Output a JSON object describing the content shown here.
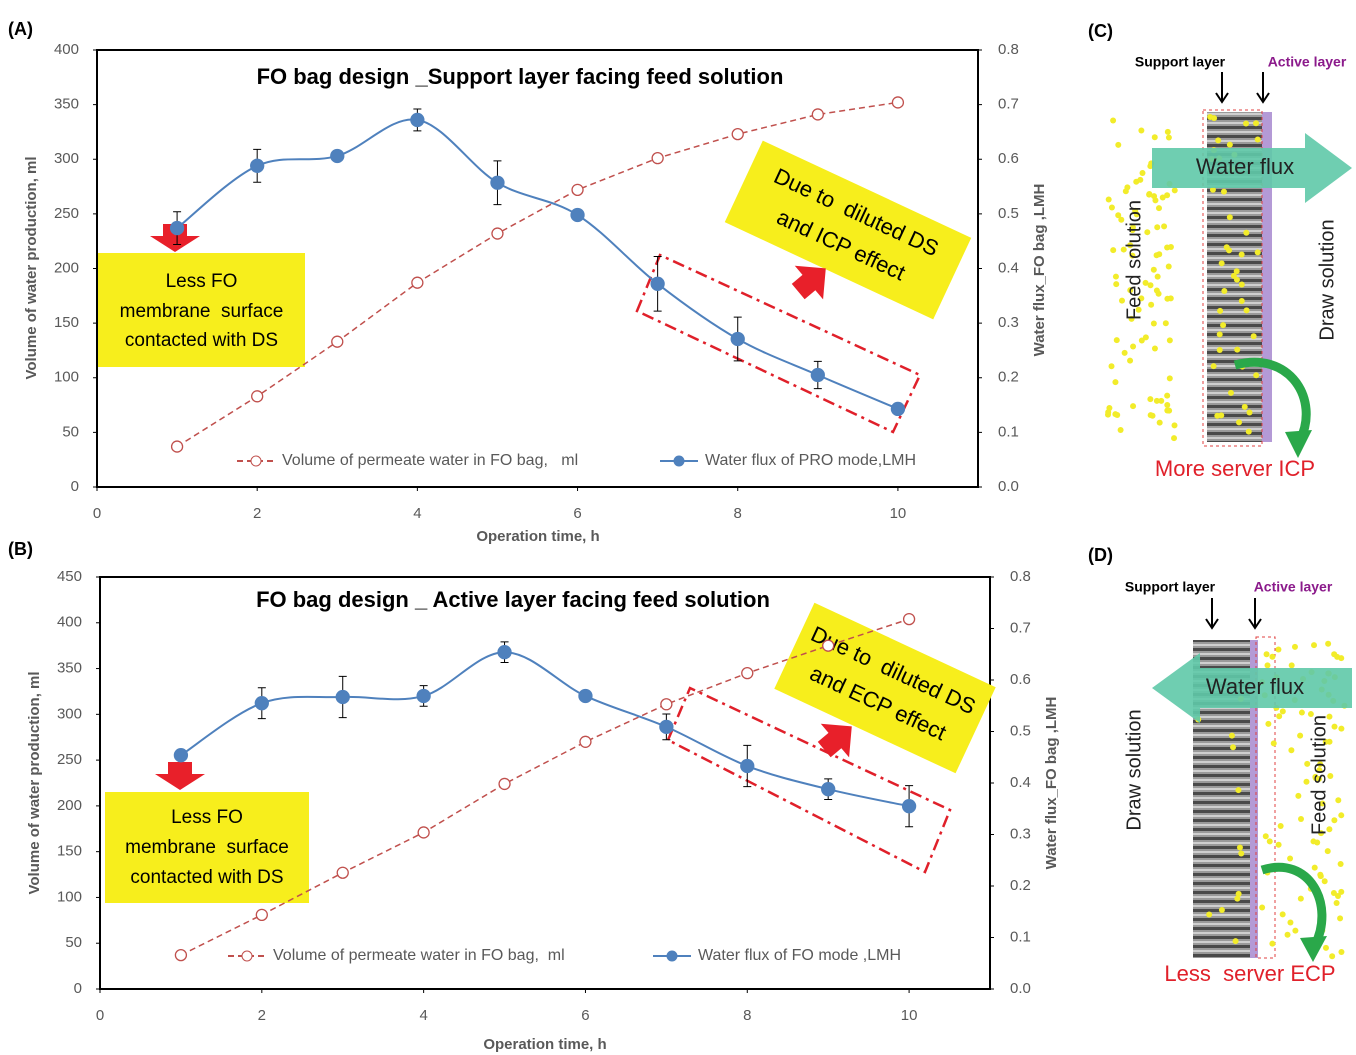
{
  "chart_data": [
    {
      "type": "line",
      "panel_label": "(A)",
      "title": "FO bag design _Support layer facing feed solution",
      "x_label": "Operation time, h",
      "y_label": "Volume of water production, ml",
      "y2_label": "Water flux_FO bag ,LMH",
      "x": [
        1,
        2,
        3,
        4,
        5,
        6,
        7,
        8,
        9,
        10
      ],
      "xlim": [
        0,
        11
      ],
      "xticks": [
        0,
        2,
        4,
        6,
        8,
        10
      ],
      "ylim": [
        0,
        400
      ],
      "yticks": [
        0,
        50,
        100,
        150,
        200,
        250,
        300,
        350,
        400
      ],
      "y2lim": [
        0,
        0.8
      ],
      "y2ticks": [
        {
          "value": 0,
          "label": "0.0"
        },
        0.1,
        0.2,
        0.3,
        0.4,
        0.5,
        0.6,
        0.7,
        0.8
      ],
      "grid": false,
      "series": [
        {
          "name": "Volume of permeate water in FO bag,   ml",
          "color": "#c0504d",
          "line_style": "dashed",
          "marker": "open-circle",
          "axis": "y",
          "values": [
            37,
            83,
            133,
            187,
            232,
            272,
            301,
            323,
            341,
            352
          ]
        },
        {
          "name": "Water flux of PRO mode,LMH",
          "color": "#4f81bd",
          "line_style": "solid",
          "marker": "filled-circle",
          "axis": "y2",
          "values": [
            0.474,
            0.588,
            0.606,
            0.672,
            0.557,
            0.498,
            0.372,
            0.271,
            0.205,
            0.143
          ],
          "errors": [
            0.03,
            0.03,
            null,
            0.02,
            0.04,
            null,
            0.05,
            0.04,
            0.025,
            null
          ]
        }
      ],
      "annotations": [
        {
          "lines": [
            "Less FO",
            "membrane  surface",
            "contacted with DS"
          ]
        },
        {
          "lines": [
            "Due to  diluted DS",
            "and ICP effect"
          ]
        }
      ]
    },
    {
      "type": "line",
      "panel_label": "(B)",
      "title": "FO bag design _ Active layer facing feed solution",
      "x_label": "Operation time, h",
      "y_label": "Volume of water production, ml",
      "y2_label": "Water flux_FO bag ,LMH",
      "x": [
        1,
        2,
        3,
        4,
        5,
        6,
        7,
        8,
        9,
        10
      ],
      "xlim": [
        0,
        11
      ],
      "xticks": [
        0,
        2,
        4,
        6,
        8,
        10
      ],
      "ylim": [
        0,
        450
      ],
      "yticks": [
        0,
        50,
        100,
        150,
        200,
        250,
        300,
        350,
        400,
        450
      ],
      "y2lim": [
        0,
        0.8
      ],
      "y2ticks": [
        {
          "value": 0,
          "label": "0.0"
        },
        0.1,
        0.2,
        0.3,
        0.4,
        0.5,
        0.6,
        0.7,
        0.8
      ],
      "grid": false,
      "series": [
        {
          "name": "Volume of permeate water in FO bag,  ml",
          "color": "#c0504d",
          "line_style": "dashed",
          "marker": "open-circle",
          "axis": "y",
          "values": [
            37,
            81,
            127,
            171,
            224,
            270,
            311,
            345,
            375,
            404
          ]
        },
        {
          "name": "Water flux of FO mode ,LMH",
          "color": "#4f81bd",
          "line_style": "solid",
          "marker": "filled-circle",
          "axis": "y2",
          "values": [
            0.454,
            0.555,
            0.567,
            0.569,
            0.654,
            0.569,
            0.509,
            0.433,
            0.388,
            0.355
          ],
          "errors": [
            null,
            0.03,
            0.04,
            0.02,
            0.02,
            null,
            0.025,
            0.04,
            0.02,
            0.04
          ]
        }
      ],
      "annotations": [
        {
          "lines": [
            "Less FO",
            "membrane  surface",
            "contacted with DS"
          ]
        },
        {
          "lines": [
            "Due to  diluted DS",
            "and ECP effect"
          ]
        }
      ]
    }
  ],
  "diagrams": [
    {
      "panel_label": "(C)",
      "support_label": "Support layer",
      "active_label": "Active layer",
      "flux_label": "Water flux",
      "left_label": "Feed solution",
      "right_label": "Draw solution",
      "caption": "More server ICP"
    },
    {
      "panel_label": "(D)",
      "support_label": "Support layer",
      "active_label": "Active layer",
      "flux_label": "Water flux",
      "left_label": "Draw solution",
      "right_label": "Feed solution",
      "caption": "Less  server ECP"
    }
  ]
}
